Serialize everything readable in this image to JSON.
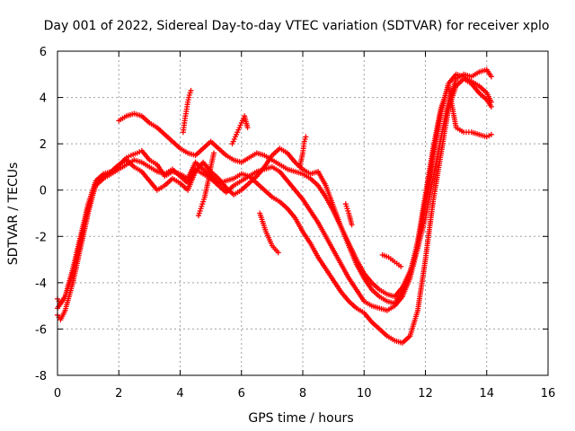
{
  "chart_data": {
    "type": "scatter",
    "title": "Day 001 of 2022, Sidereal Day-to-day VTEC variation (SDTVAR) for receiver xplo",
    "xlabel": "GPS time / hours",
    "ylabel": "SDTVAR / TECUs",
    "xlim": [
      0,
      16
    ],
    "ylim": [
      -8,
      6
    ],
    "x_ticks": [
      "0",
      "2",
      "4",
      "6",
      "8",
      "10",
      "12",
      "14",
      "16"
    ],
    "y_ticks": [
      "-8",
      "-6",
      "-4",
      "-2",
      "0",
      "2",
      "4",
      "6"
    ],
    "grid": true,
    "marker": "+",
    "color": "#ff0000",
    "series": [
      {
        "x": [
          0.0,
          0.1,
          0.25,
          0.5,
          0.75,
          1.0,
          1.25,
          1.5,
          1.75,
          2.0,
          2.1,
          2.25,
          2.4,
          2.6,
          2.75,
          3.0,
          3.25,
          3.5,
          3.75,
          4.0,
          4.25,
          4.5,
          4.75,
          5.0,
          5.25,
          5.5,
          5.75,
          6.0,
          6.25,
          6.5,
          6.75,
          7.0,
          7.25,
          7.5,
          7.75,
          8.0,
          8.25,
          8.5,
          8.75,
          9.0,
          9.25,
          9.5,
          9.75,
          10.0,
          10.25,
          10.5,
          10.75,
          11.0,
          11.25,
          11.5,
          11.75,
          12.0,
          12.25,
          12.5,
          12.75,
          13.0,
          13.25,
          13.5,
          13.75,
          14.0,
          14.15
        ],
        "y": [
          -5.4,
          -5.6,
          -5.2,
          -4.0,
          -2.5,
          -1.0,
          0.3,
          0.6,
          0.8,
          1.0,
          1.2,
          1.4,
          1.5,
          1.6,
          1.7,
          1.3,
          1.1,
          0.6,
          0.8,
          0.7,
          0.5,
          1.2,
          0.9,
          0.6,
          0.3,
          0.4,
          0.5,
          0.7,
          0.6,
          0.3,
          0.0,
          -0.3,
          -0.5,
          -0.8,
          -1.2,
          -1.8,
          -2.3,
          -2.9,
          -3.4,
          -3.9,
          -4.4,
          -4.8,
          -5.1,
          -5.3,
          -5.7,
          -6.0,
          -6.3,
          -6.5,
          -6.6,
          -6.3,
          -5.2,
          -3.0,
          -0.5,
          1.5,
          3.5,
          4.5,
          4.8,
          4.6,
          4.2,
          3.9,
          3.6
        ]
      },
      {
        "x": [
          0.0,
          0.1,
          0.25,
          0.5,
          0.75,
          1.0,
          1.25,
          1.5,
          1.75,
          2.0,
          2.25,
          2.5,
          2.75,
          3.0,
          3.25,
          3.5,
          3.75,
          4.0,
          4.25,
          4.5,
          4.75,
          5.0,
          5.25,
          5.5,
          5.75,
          6.0,
          6.25,
          6.5,
          6.75,
          7.0,
          7.25,
          7.5,
          7.75,
          8.0,
          8.25,
          8.5,
          8.75,
          9.0,
          9.25,
          9.5,
          9.75,
          10.0,
          10.25,
          10.5,
          10.75,
          11.0,
          11.25,
          11.5,
          11.75,
          12.0,
          12.25,
          12.5,
          12.75,
          13.0,
          13.25,
          13.5,
          13.75,
          14.0,
          14.15
        ],
        "y": [
          -4.7,
          -4.9,
          -4.6,
          -3.6,
          -2.2,
          -0.8,
          0.2,
          0.5,
          0.7,
          0.9,
          1.1,
          1.3,
          1.2,
          1.0,
          0.8,
          0.7,
          0.9,
          0.6,
          0.3,
          0.9,
          0.7,
          0.5,
          0.2,
          -0.1,
          0.2,
          0.4,
          0.6,
          0.8,
          0.9,
          1.0,
          0.8,
          0.4,
          0.0,
          -0.4,
          -0.9,
          -1.4,
          -2.0,
          -2.6,
          -3.2,
          -3.8,
          -4.3,
          -4.8,
          -5.0,
          -5.1,
          -5.2,
          -5.0,
          -4.6,
          -3.8,
          -2.5,
          -0.5,
          1.5,
          3.3,
          4.6,
          5.0,
          4.9,
          4.7,
          4.5,
          4.2,
          3.8
        ]
      },
      {
        "x": [
          2.0,
          2.25,
          2.5,
          2.75,
          3.0,
          3.25,
          3.5,
          3.75,
          4.0,
          4.25,
          4.5,
          4.75,
          5.0,
          5.25,
          5.5,
          5.75,
          6.0,
          6.25,
          6.5,
          6.75,
          7.0,
          7.25,
          7.5,
          7.75,
          8.0,
          8.25,
          8.5,
          8.75,
          9.0,
          9.25,
          9.5,
          9.75,
          10.0,
          10.25,
          10.5,
          10.75,
          11.0,
          11.25,
          11.5,
          11.75,
          12.0,
          12.25,
          12.5,
          12.75,
          13.0,
          13.25,
          13.5,
          13.75,
          14.0,
          14.15
        ],
        "y": [
          3.0,
          3.2,
          3.3,
          3.2,
          2.9,
          2.7,
          2.4,
          2.1,
          1.8,
          1.6,
          1.5,
          1.8,
          2.1,
          1.8,
          1.5,
          1.3,
          1.2,
          1.4,
          1.6,
          1.5,
          1.3,
          1.1,
          0.9,
          0.8,
          0.7,
          0.5,
          0.2,
          -0.3,
          -0.9,
          -1.6,
          -2.3,
          -3.0,
          -3.6,
          -4.0,
          -4.3,
          -4.5,
          -4.6,
          -4.2,
          -3.5,
          -2.5,
          -1.2,
          0.5,
          2.2,
          3.8,
          4.8,
          5.0,
          4.9,
          5.1,
          5.2,
          4.9
        ]
      },
      {
        "x": [
          0.0,
          0.25,
          0.5,
          0.75,
          1.0,
          1.25,
          1.5,
          1.75,
          2.0,
          2.25,
          2.5,
          2.75,
          3.0,
          3.25,
          3.5,
          3.75,
          4.0,
          4.25,
          4.5,
          4.75,
          5.0,
          5.25,
          5.5,
          5.75,
          6.0,
          6.25,
          6.5,
          6.75,
          7.0,
          7.25,
          7.5,
          7.75,
          8.0,
          8.25,
          8.5,
          8.75,
          9.0,
          9.25,
          9.5,
          9.75,
          10.0,
          10.25,
          10.5,
          10.75,
          11.0,
          11.25,
          11.5,
          11.75,
          12.0,
          12.25,
          12.5,
          12.75,
          13.0,
          13.25,
          13.5,
          13.75,
          14.0,
          14.15
        ],
        "y": [
          -5.1,
          -4.6,
          -3.4,
          -2.0,
          -0.6,
          0.4,
          0.7,
          0.8,
          1.1,
          1.3,
          1.0,
          0.8,
          0.4,
          0.0,
          0.2,
          0.5,
          0.3,
          0.0,
          0.8,
          1.2,
          0.8,
          0.5,
          0.1,
          -0.2,
          0.0,
          0.3,
          0.6,
          1.0,
          1.5,
          1.8,
          1.6,
          1.2,
          0.9,
          0.7,
          0.8,
          0.2,
          -0.7,
          -1.6,
          -2.4,
          -3.2,
          -3.8,
          -4.3,
          -4.6,
          -4.8,
          -4.9,
          -4.4,
          -3.6,
          -2.2,
          -0.2,
          1.8,
          3.5,
          4.5,
          2.7,
          2.5,
          2.5,
          2.4,
          2.3,
          2.4
        ]
      },
      {
        "x": [
          4.1,
          4.15,
          4.2,
          4.25,
          4.3,
          4.35
        ],
        "y": [
          2.5,
          3.0,
          3.4,
          3.8,
          4.1,
          4.3
        ]
      },
      {
        "x": [
          4.6,
          4.7,
          4.8,
          4.9,
          5.0,
          5.1
        ],
        "y": [
          -1.1,
          -0.7,
          -0.3,
          0.3,
          1.0,
          1.6
        ]
      },
      {
        "x": [
          5.7,
          5.8,
          5.9,
          6.0,
          6.1,
          6.2
        ],
        "y": [
          2.0,
          2.3,
          2.6,
          2.9,
          3.2,
          2.7
        ]
      },
      {
        "x": [
          6.6,
          6.8,
          7.0,
          7.2
        ],
        "y": [
          -1.0,
          -1.8,
          -2.4,
          -2.7
        ]
      },
      {
        "x": [
          7.9,
          8.0,
          8.05,
          8.1
        ],
        "y": [
          1.0,
          1.6,
          2.1,
          2.3
        ]
      },
      {
        "x": [
          10.6,
          10.8,
          11.0,
          11.2
        ],
        "y": [
          -2.8,
          -2.9,
          -3.1,
          -3.3
        ]
      },
      {
        "x": [
          9.4,
          9.5,
          9.6
        ],
        "y": [
          -0.6,
          -1.0,
          -1.5
        ]
      }
    ]
  }
}
